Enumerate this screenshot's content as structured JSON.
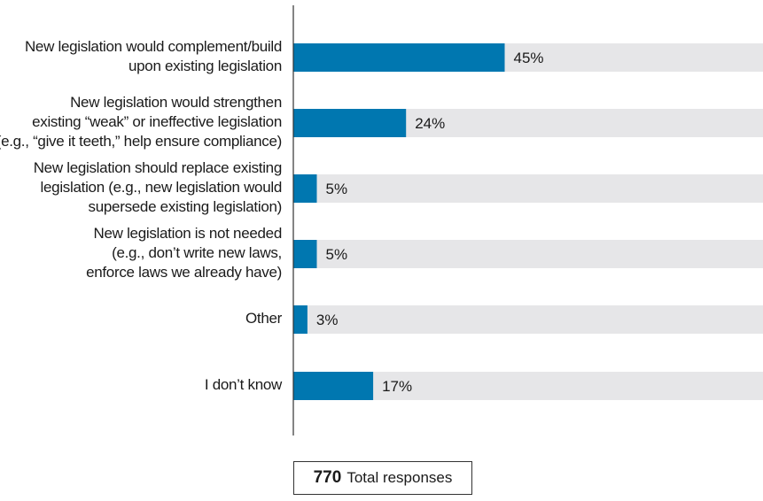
{
  "chart_data": {
    "type": "bar",
    "orientation": "horizontal",
    "categories": [
      "New legislation would complement/build\nupon existing legislation",
      "New legislation would strengthen\nexisting “weak” or ineffective legislation\n(e.g., “give it teeth,” help ensure compliance)",
      "New legislation should replace existing\nlegislation (e.g., new legislation would\nsupersede existing legislation)",
      "New legislation is not needed\n(e.g., don’t write new laws,\nenforce laws we already have)",
      "Other",
      "I don’t know"
    ],
    "values": [
      45,
      24,
      5,
      5,
      3,
      17
    ],
    "value_labels": [
      "45%",
      "24%",
      "5%",
      "5%",
      "3%",
      "17%"
    ],
    "xlim": [
      0,
      100
    ],
    "grid": false,
    "colors": {
      "bar": "#0077b0",
      "track": "#e6e6e8",
      "axis": "#333333"
    }
  },
  "total": {
    "count": "770",
    "label": "Total responses"
  }
}
